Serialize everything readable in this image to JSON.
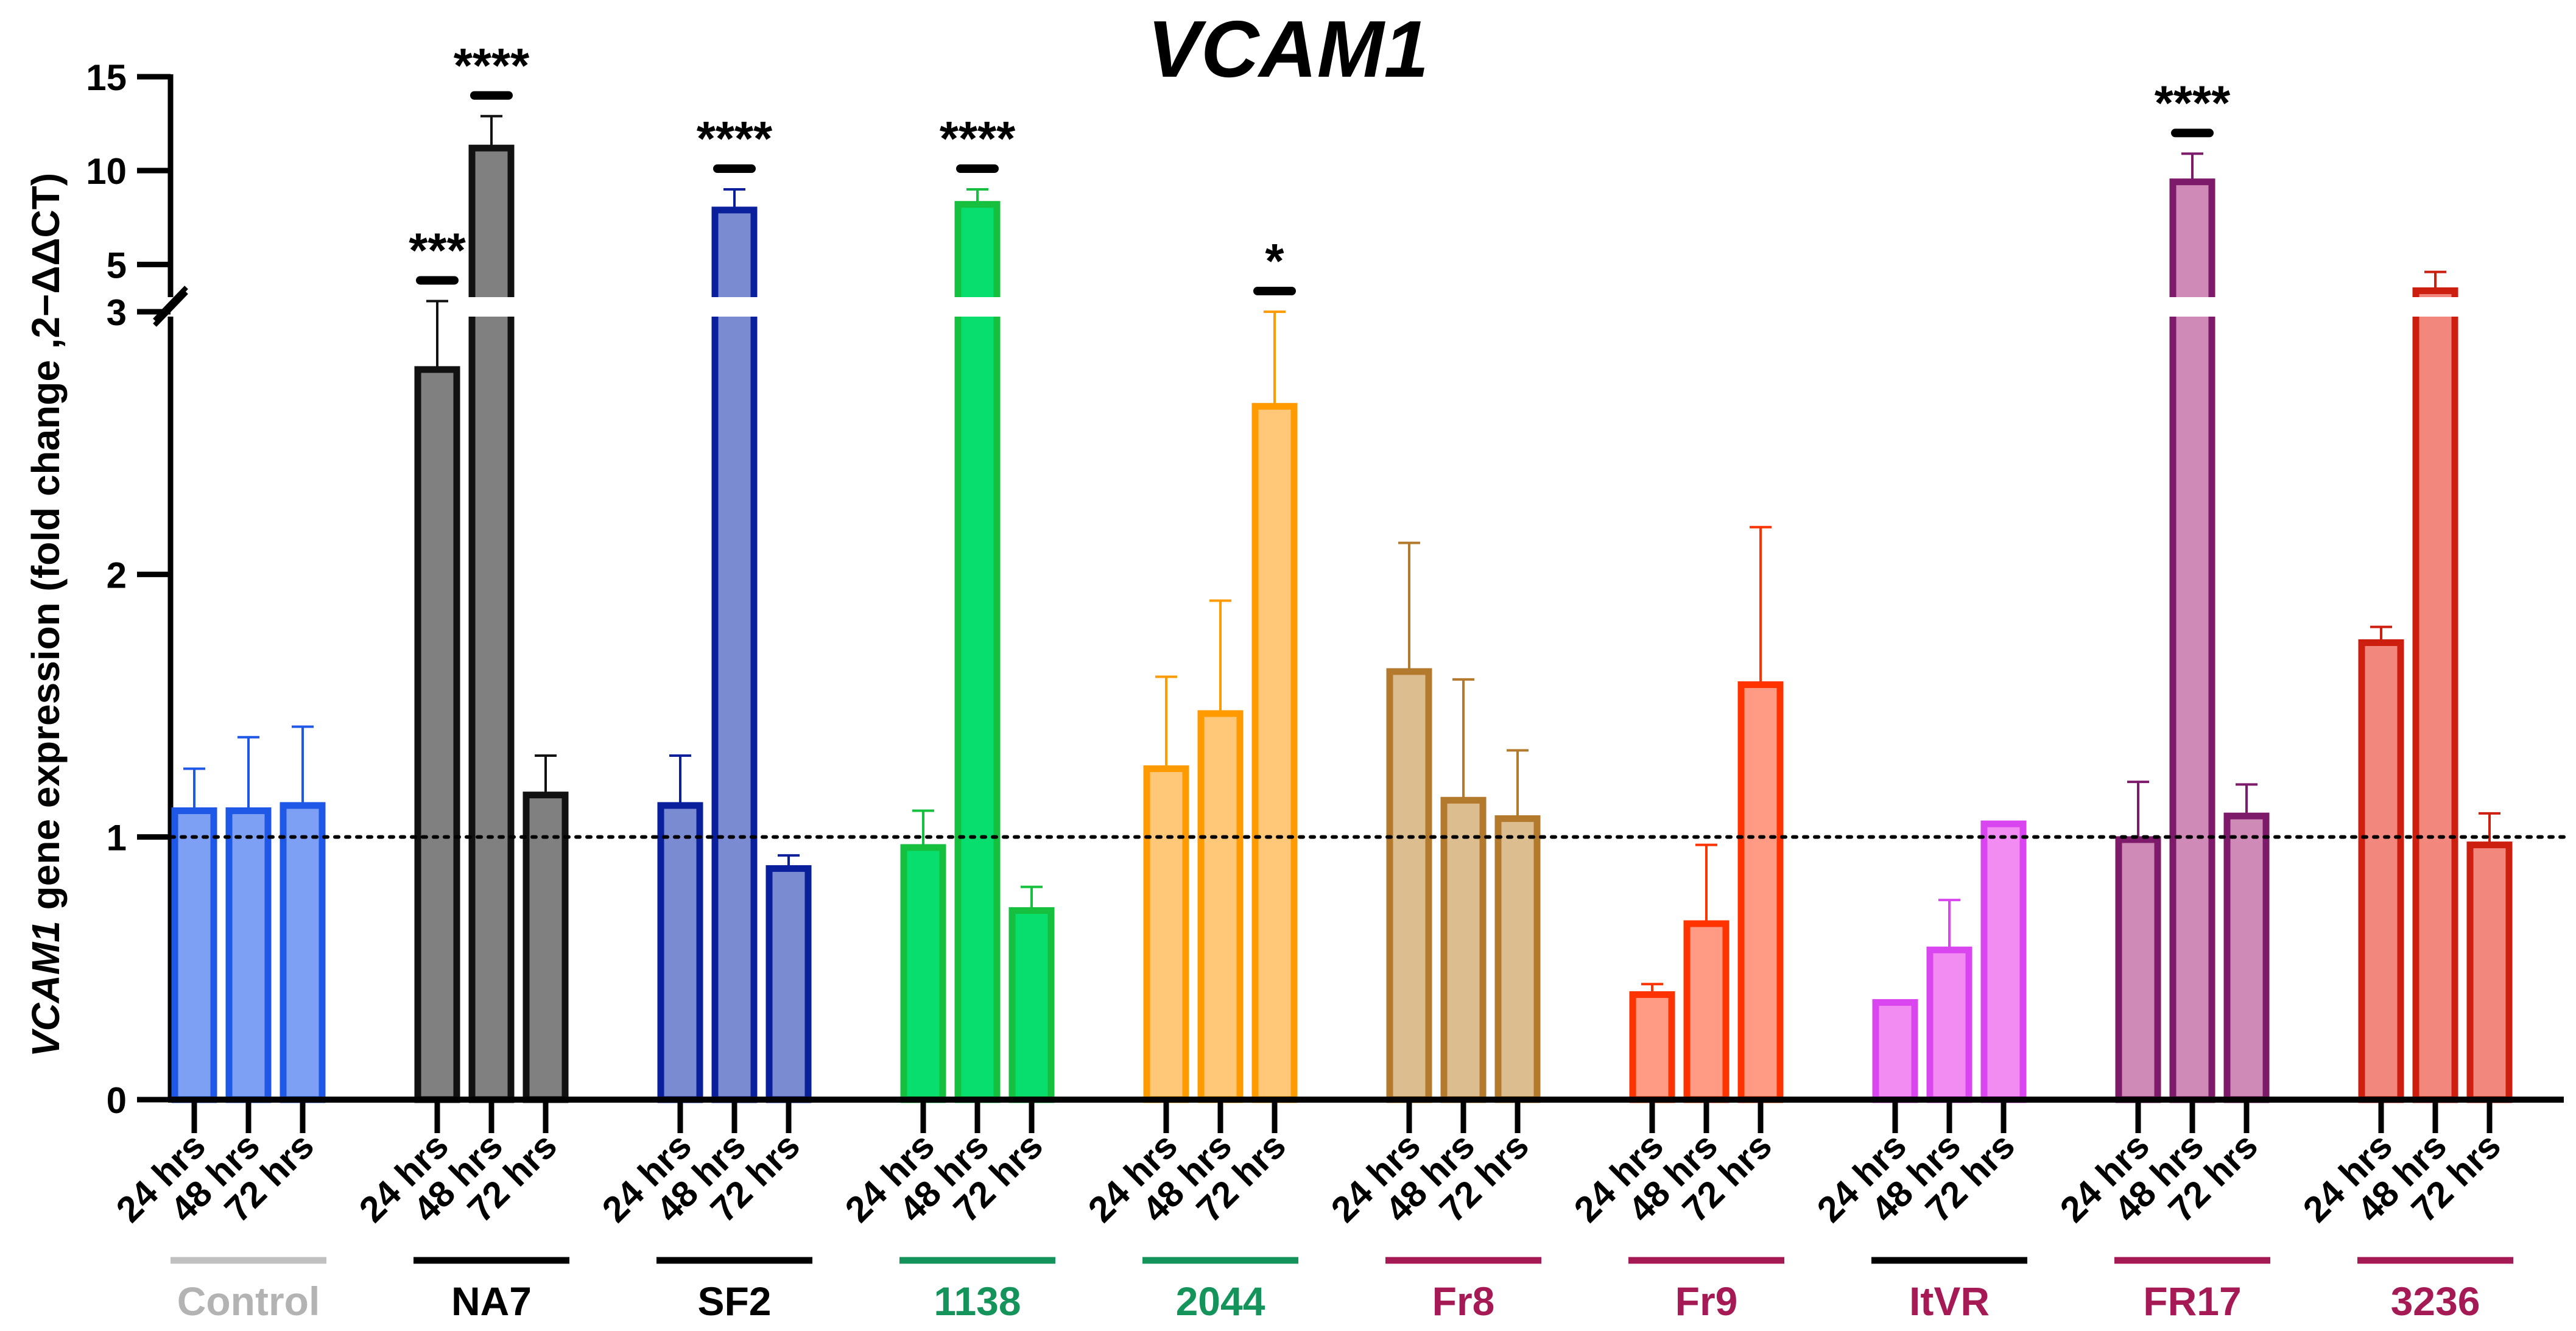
{
  "chart_data": {
    "type": "bar",
    "title": "VCAM1",
    "ylabel_gene": "VCAM1",
    "ylabel_rest": " gene expression (fold change ,2−ΔΔCT)",
    "reference_line": 1,
    "y_axis": {
      "lower_segment": [
        0,
        3
      ],
      "upper_segment": [
        3,
        15
      ],
      "lower_ticks": [
        "0",
        "1",
        "2",
        "3"
      ],
      "upper_ticks": [
        "5",
        "10",
        "15"
      ],
      "break": true
    },
    "x_tick_labels": [
      "24 hrs",
      "48 hrs",
      "72 hrs"
    ],
    "groups": [
      {
        "name": "Control",
        "label_color": "#b3b3b3",
        "line_color": "#c0c0c0",
        "bar_color": "#1f57e6",
        "fill": "#7ea0f4",
        "values": [
          1.1,
          1.1,
          1.12
        ],
        "errors": [
          1.26,
          1.38,
          1.42
        ],
        "significance": [
          "",
          "",
          ""
        ]
      },
      {
        "name": "NA7",
        "label_color": "#000000",
        "line_color": "#000000",
        "bar_color": "#111111",
        "fill": "#808080",
        "values": [
          2.78,
          11.2,
          1.16
        ],
        "errors": [
          3.05,
          12.9,
          1.31
        ],
        "significance": [
          "***",
          "****",
          ""
        ]
      },
      {
        "name": "SF2",
        "label_color": "#000000",
        "line_color": "#000000",
        "bar_color": "#0a1f9c",
        "fill": "#7a8bd1",
        "values": [
          1.12,
          7.9,
          0.88
        ],
        "errors": [
          1.31,
          9.0,
          0.93
        ],
        "significance": [
          "",
          "****",
          ""
        ]
      },
      {
        "name": "1138",
        "label_color": "#14935a",
        "line_color": "#14935a",
        "bar_color": "#16c03e",
        "fill": "#07de6e",
        "values": [
          0.96,
          8.2,
          0.72
        ],
        "errors": [
          1.1,
          9.0,
          0.81
        ],
        "significance": [
          "",
          "****",
          ""
        ]
      },
      {
        "name": "2044",
        "label_color": "#14935a",
        "line_color": "#14935a",
        "bar_color": "#ff9a00",
        "fill": "#ffc878",
        "values": [
          1.26,
          1.47,
          2.64
        ],
        "errors": [
          1.61,
          1.9,
          3.0
        ],
        "significance": [
          "",
          "",
          "*"
        ]
      },
      {
        "name": "Fr8",
        "label_color": "#a51a55",
        "line_color": "#a51a55",
        "bar_color": "#b37a2e",
        "fill": "#dbbd8f",
        "values": [
          1.63,
          1.14,
          1.07
        ],
        "errors": [
          2.12,
          1.6,
          1.33
        ],
        "significance": [
          "",
          "",
          ""
        ]
      },
      {
        "name": "Fr9",
        "label_color": "#a51a55",
        "line_color": "#a51a55",
        "bar_color": "#ff3300",
        "fill": "#ff9a85",
        "values": [
          0.4,
          0.67,
          1.58
        ],
        "errors": [
          0.44,
          0.97,
          2.18
        ],
        "significance": [
          "",
          "",
          ""
        ]
      },
      {
        "name": "ItVR",
        "label_color": "#a51a55",
        "line_color": "#000000",
        "bar_color": "#d946ef",
        "fill": "#f28cf2",
        "values": [
          0.37,
          0.57,
          1.05
        ],
        "errors": [
          0.37,
          0.76,
          1.05
        ],
        "significance": [
          "",
          "",
          ""
        ]
      },
      {
        "name": "FR17",
        "label_color": "#a51a55",
        "line_color": "#a51a55",
        "bar_color": "#7e1a6a",
        "fill": "#cf8ab7",
        "values": [
          0.99,
          9.4,
          1.08
        ],
        "errors": [
          1.21,
          10.9,
          1.2
        ],
        "significance": [
          "",
          "****",
          ""
        ]
      },
      {
        "name": "3236",
        "label_color": "#a51a55",
        "line_color": "#a51a55",
        "bar_color": "#cc1f0f",
        "fill": "#f2877d",
        "values": [
          1.74,
          3.6,
          0.97
        ],
        "errors": [
          1.8,
          4.6,
          1.09
        ],
        "significance": [
          "",
          "",
          ""
        ]
      }
    ]
  }
}
